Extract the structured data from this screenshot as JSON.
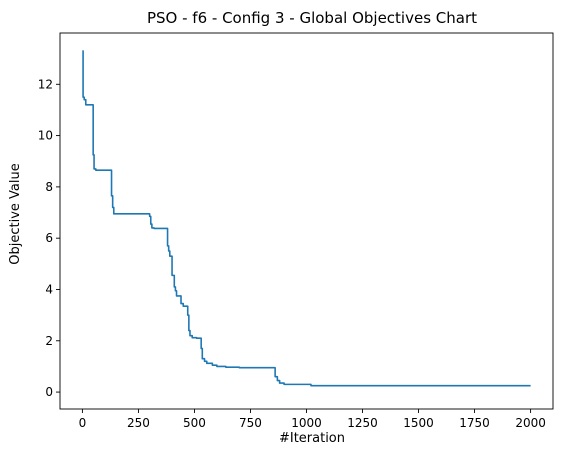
{
  "chart_data": {
    "type": "line",
    "title": "PSO - f6 - Config 3 - Global Objectives Chart",
    "xlabel": "#Iteration",
    "ylabel": "Objective Value",
    "xlim": [
      -100,
      2100
    ],
    "ylim": [
      -0.66,
      14.0
    ],
    "xticks": [
      0,
      250,
      500,
      750,
      1000,
      1250,
      1500,
      1750,
      2000
    ],
    "xtick_labels": [
      "0",
      "250",
      "500",
      "750",
      "1000",
      "1250",
      "1500",
      "1750",
      "2000"
    ],
    "yticks": [
      0,
      2,
      4,
      6,
      8,
      10,
      12
    ],
    "ytick_labels": [
      "0",
      "2",
      "4",
      "6",
      "8",
      "10",
      "12"
    ],
    "grid": false,
    "legend": "none",
    "line_color": "#1f77b4",
    "series": [
      {
        "x": [
          0,
          3,
          3,
          8,
          8,
          15,
          15,
          48,
          48,
          52,
          52,
          60,
          60,
          130,
          130,
          135,
          135,
          140,
          140,
          300,
          300,
          305,
          305,
          310,
          310,
          320,
          320,
          380,
          380,
          385,
          385,
          390,
          390,
          400,
          400,
          410,
          410,
          415,
          415,
          420,
          420,
          440,
          440,
          450,
          450,
          470,
          470,
          475,
          475,
          480,
          480,
          490,
          490,
          510,
          510,
          530,
          530,
          535,
          535,
          545,
          545,
          555,
          555,
          580,
          580,
          600,
          600,
          640,
          640,
          700,
          700,
          860,
          860,
          870,
          870,
          880,
          880,
          900,
          900,
          1020,
          1020,
          2000
        ],
        "y": [
          13.3,
          13.3,
          11.5,
          11.5,
          11.4,
          11.4,
          11.2,
          11.2,
          9.25,
          9.25,
          8.7,
          8.7,
          8.65,
          8.65,
          7.65,
          7.65,
          7.2,
          7.2,
          6.95,
          6.95,
          6.85,
          6.85,
          6.55,
          6.55,
          6.4,
          6.4,
          6.38,
          6.38,
          5.7,
          5.7,
          5.5,
          5.5,
          5.3,
          5.3,
          4.55,
          4.55,
          4.1,
          4.1,
          3.95,
          3.95,
          3.75,
          3.75,
          3.45,
          3.45,
          3.35,
          3.35,
          3.0,
          3.0,
          2.4,
          2.4,
          2.2,
          2.2,
          2.12,
          2.12,
          2.1,
          2.1,
          1.7,
          1.7,
          1.3,
          1.3,
          1.2,
          1.2,
          1.12,
          1.12,
          1.05,
          1.05,
          1.0,
          1.0,
          0.97,
          0.97,
          0.95,
          0.95,
          0.6,
          0.6,
          0.45,
          0.45,
          0.35,
          0.35,
          0.3,
          0.3,
          0.25,
          0.25
        ]
      }
    ]
  }
}
